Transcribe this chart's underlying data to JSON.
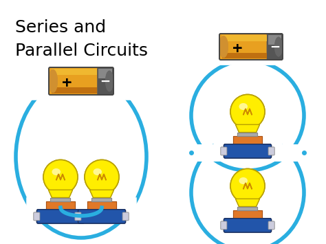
{
  "title_line1": "Series and",
  "title_line2": "Parallel Circuits",
  "title_fontsize": 18,
  "bg_color": "#ffffff",
  "wire_color": "#2aaee0",
  "wire_lw": 4.0,
  "bulb_yellow": "#ffee00",
  "bulb_outline": "#ccaa00",
  "socket_orange": "#e07828",
  "socket_blue": "#2255aa",
  "socket_dark": "#1a3060"
}
